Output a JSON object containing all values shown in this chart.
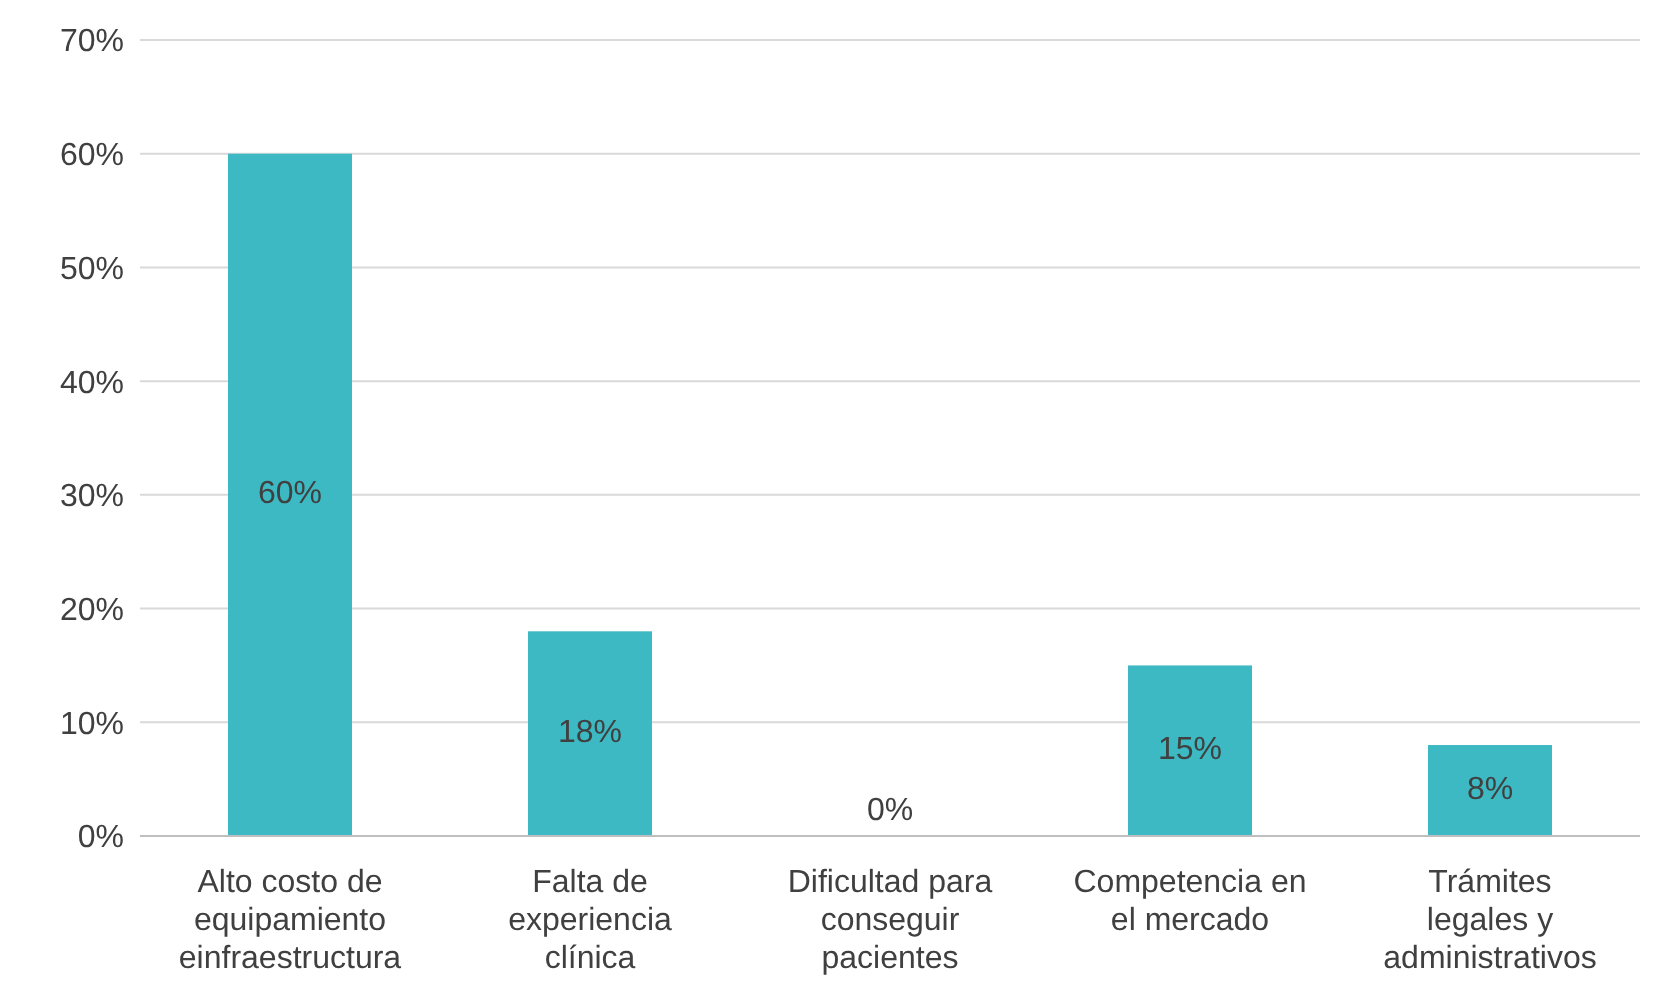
{
  "chart_data": {
    "type": "bar",
    "categories": [
      "Alto costo de equipamiento einfraestructura",
      "Falta de experiencia clínica",
      "Dificultad para conseguir pacientes",
      "Competencia en el mercado",
      "Trámites legales y administrativos"
    ],
    "values": [
      60,
      18,
      0,
      15,
      8
    ],
    "value_labels": [
      "60%",
      "18%",
      "0%",
      "15%",
      "8%"
    ],
    "color": "#3db9c3",
    "ylim": [
      0,
      70
    ],
    "yticks": [
      {
        "value": 0,
        "label": "0%"
      },
      {
        "value": 10,
        "label": "10%"
      },
      {
        "value": 20,
        "label": "20%"
      },
      {
        "value": 30,
        "label": "30%"
      },
      {
        "value": 40,
        "label": "40%"
      },
      {
        "value": 50,
        "label": "50%"
      },
      {
        "value": 60,
        "label": "60%"
      },
      {
        "value": 70,
        "label": "70%"
      }
    ],
    "grid": "y",
    "legend": false
  }
}
